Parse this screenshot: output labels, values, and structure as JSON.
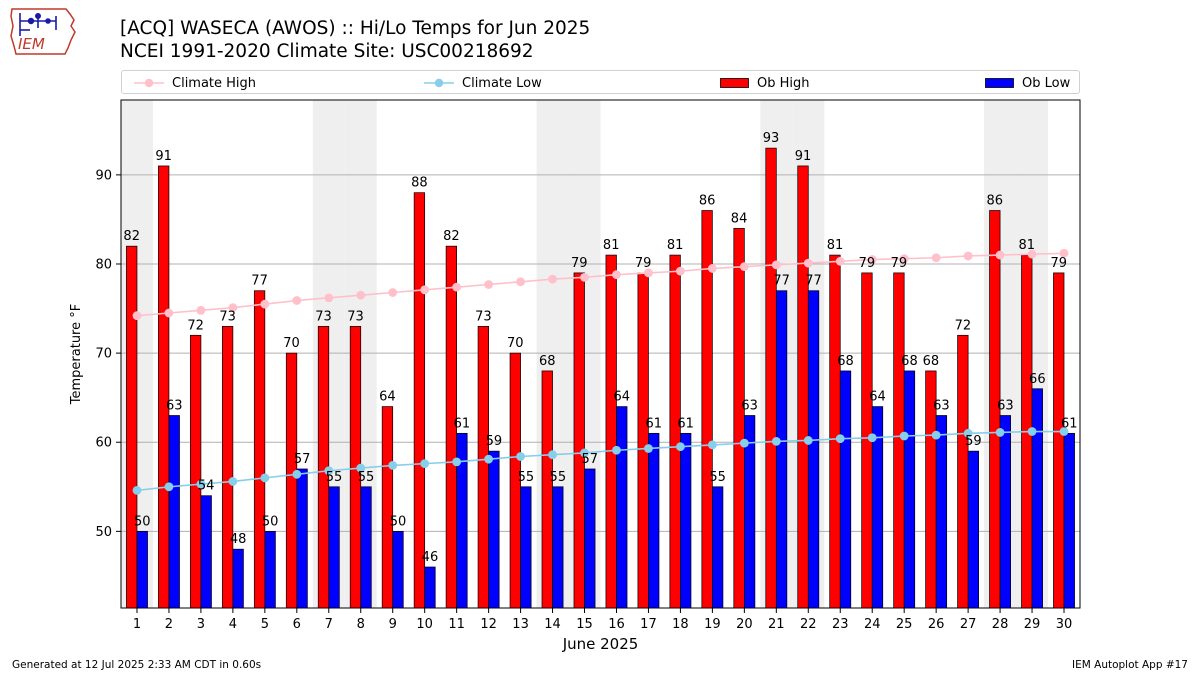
{
  "logo_text": "IEM",
  "title_line1": "[ACQ] WASECA (AWOS) :: Hi/Lo Temps for Jun 2025",
  "title_line2": "NCEI 1991-2020 Climate Site: USC00218692",
  "footer_left": "Generated at 12 Jul 2025 2:33 AM CDT in 0.60s",
  "footer_right": "IEM Autoplot App #17",
  "colors": {
    "ob_high": "#ff0000",
    "ob_low": "#0000ff",
    "climate_high": "#ffc0cb",
    "climate_low": "#87ceeb",
    "weekend_shade": "#efefef",
    "grid": "#b0b0b0"
  },
  "chart_data": {
    "type": "bar",
    "xlabel": "June 2025",
    "ylabel": "Temperature °F",
    "ylim": [
      41.4,
      98.4
    ],
    "yticks": [
      50,
      60,
      70,
      80,
      90
    ],
    "grid": "horizontal",
    "legend_position": "top",
    "categories": [
      "1",
      "2",
      "3",
      "4",
      "5",
      "6",
      "7",
      "8",
      "9",
      "10",
      "11",
      "12",
      "13",
      "14",
      "15",
      "16",
      "17",
      "18",
      "19",
      "20",
      "21",
      "22",
      "23",
      "24",
      "25",
      "26",
      "27",
      "28",
      "29",
      "30"
    ],
    "weekend_days": [
      1,
      7,
      8,
      14,
      15,
      21,
      22,
      28,
      29
    ],
    "series": [
      {
        "name": "Climate High",
        "kind": "line",
        "values": [
          74.2,
          74.5,
          74.8,
          75.1,
          75.5,
          75.9,
          76.2,
          76.5,
          76.8,
          77.1,
          77.4,
          77.7,
          78.0,
          78.3,
          78.5,
          78.8,
          79.0,
          79.2,
          79.5,
          79.7,
          79.9,
          80.1,
          80.3,
          80.5,
          80.6,
          80.7,
          80.9,
          81.0,
          81.1,
          81.2
        ]
      },
      {
        "name": "Climate Low",
        "kind": "line",
        "values": [
          54.6,
          55.0,
          55.3,
          55.6,
          56.0,
          56.4,
          56.8,
          57.1,
          57.4,
          57.6,
          57.8,
          58.1,
          58.4,
          58.6,
          58.8,
          59.1,
          59.3,
          59.5,
          59.7,
          59.9,
          60.1,
          60.2,
          60.4,
          60.5,
          60.7,
          60.8,
          61.0,
          61.1,
          61.2,
          61.2
        ]
      },
      {
        "name": "Ob High",
        "kind": "bar",
        "values": [
          82,
          91,
          72,
          73,
          77,
          70,
          73,
          73,
          64,
          88,
          82,
          73,
          70,
          68,
          79,
          81,
          79,
          81,
          86,
          84,
          93,
          91,
          81,
          79,
          79,
          68,
          72,
          86,
          81,
          79
        ]
      },
      {
        "name": "Ob Low",
        "kind": "bar",
        "values": [
          50,
          63,
          54,
          48,
          50,
          57,
          55,
          55,
          50,
          46,
          61,
          59,
          55,
          55,
          57,
          64,
          61,
          61,
          55,
          63,
          77,
          77,
          68,
          64,
          68,
          63,
          59,
          63,
          66,
          61
        ]
      }
    ]
  }
}
